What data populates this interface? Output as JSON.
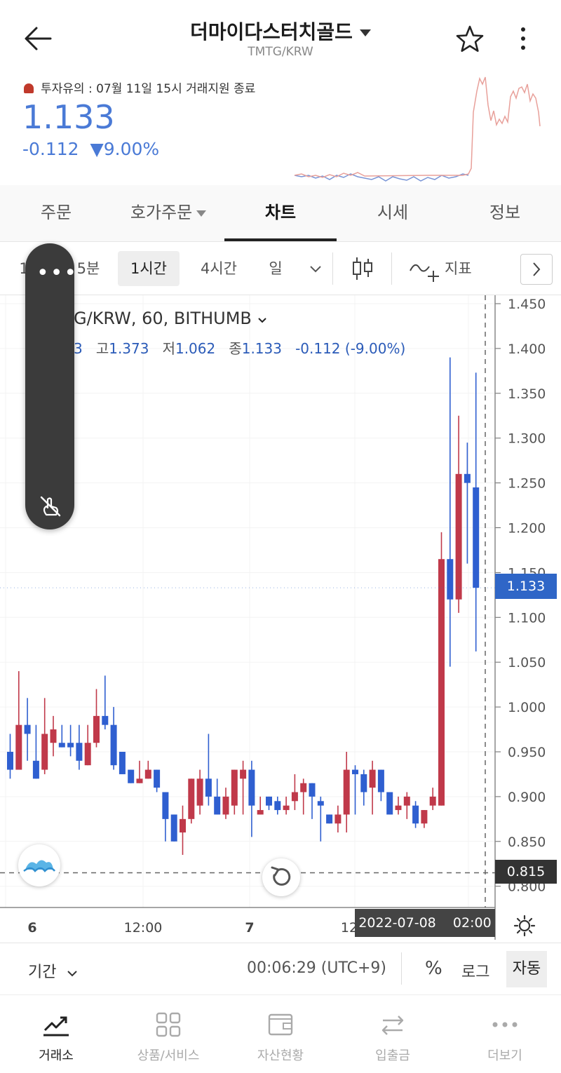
{
  "header": {
    "title": "더마이다스터치골드",
    "subtitle": "TMTG/KRW"
  },
  "summary": {
    "notice": "투자유의 : 07월 11일 15시 거래지원 종료",
    "price": "1.133",
    "change": "-0.112",
    "change_pct": "▼9.00%"
  },
  "tabs": [
    {
      "label": "주문"
    },
    {
      "label": "호가주문"
    },
    {
      "label": "차트"
    },
    {
      "label": "시세"
    },
    {
      "label": "정보"
    }
  ],
  "toolbar": {
    "intervals": [
      "1",
      "5분",
      "1시간",
      "4시간",
      "일"
    ],
    "indicator_label": "지표"
  },
  "legend": {
    "symbol": "G/KRW, 60, BITHUMB",
    "open_partial": "3",
    "high_label": "고",
    "high": "1.373",
    "low_label": "저",
    "low": "1.062",
    "close_label": "종",
    "close": "1.133",
    "change": "-0.112 (-9.00%)"
  },
  "tags": {
    "current_price": "1.133",
    "reference_price": "0.815",
    "crosshair_time": "2022-07-08    02:00"
  },
  "controls": {
    "period_label": "기간",
    "clock": "00:06:29 (UTC+9)",
    "percent": "%",
    "log": "로그",
    "auto": "자동"
  },
  "nav": [
    {
      "label": "거래소",
      "icon": "trend-icon"
    },
    {
      "label": "상품/서비스",
      "icon": "grid-icon"
    },
    {
      "label": "자산현황",
      "icon": "wallet-icon"
    },
    {
      "label": "입출금",
      "icon": "transfer-icon"
    },
    {
      "label": "더보기",
      "icon": "more-icon"
    }
  ],
  "colors": {
    "up": "#c0394a",
    "down": "#2f5fd0",
    "accent": "#4a7ad6"
  },
  "chart_data": {
    "type": "candlestick",
    "symbol": "TMTG/KRW",
    "interval": "60",
    "exchange": "BITHUMB",
    "y_ticks": [
      "1.450",
      "1.400",
      "1.350",
      "1.300",
      "1.250",
      "1.200",
      "1.150",
      "1.100",
      "1.050",
      "1.000",
      "0.950",
      "0.900",
      "0.850",
      "0.800"
    ],
    "x_ticks": [
      "6",
      "12:00",
      "7",
      "12"
    ],
    "ylim": [
      0.777,
      1.47
    ],
    "candles": [
      [
        0.95,
        0.93,
        0.97,
        0.92
      ],
      [
        0.93,
        0.98,
        1.04,
        0.93
      ],
      [
        0.98,
        0.97,
        1.01,
        0.94
      ],
      [
        0.94,
        0.92,
        0.98,
        0.92
      ],
      [
        0.93,
        0.97,
        1.01,
        0.925
      ],
      [
        0.96,
        0.975,
        0.99,
        0.945
      ],
      [
        0.96,
        0.955,
        0.98,
        0.955
      ],
      [
        0.96,
        0.955,
        0.98,
        0.945
      ],
      [
        0.96,
        0.94,
        0.98,
        0.93
      ],
      [
        0.935,
        0.96,
        0.98,
        0.935
      ],
      [
        0.96,
        0.99,
        1.02,
        0.955
      ],
      [
        0.99,
        0.98,
        1.035,
        0.975
      ],
      [
        0.98,
        0.935,
        1.0,
        0.93
      ],
      [
        0.95,
        0.925,
        0.95,
        0.925
      ],
      [
        0.93,
        0.915,
        0.93,
        0.915
      ],
      [
        0.915,
        0.92,
        0.94,
        0.915
      ],
      [
        0.92,
        0.93,
        0.94,
        0.92
      ],
      [
        0.93,
        0.91,
        0.93,
        0.905
      ],
      [
        0.905,
        0.875,
        0.905,
        0.85
      ],
      [
        0.88,
        0.85,
        0.88,
        0.85
      ],
      [
        0.86,
        0.875,
        0.89,
        0.835
      ],
      [
        0.875,
        0.92,
        0.92,
        0.87
      ],
      [
        0.89,
        0.92,
        0.93,
        0.88
      ],
      [
        0.92,
        0.9,
        0.97,
        0.89
      ],
      [
        0.9,
        0.88,
        0.92,
        0.88
      ],
      [
        0.88,
        0.9,
        0.91,
        0.875
      ],
      [
        0.89,
        0.93,
        0.93,
        0.88
      ],
      [
        0.92,
        0.93,
        0.94,
        0.88
      ],
      [
        0.93,
        0.89,
        0.94,
        0.855
      ],
      [
        0.88,
        0.885,
        0.9,
        0.88
      ],
      [
        0.9,
        0.89,
        0.9,
        0.885
      ],
      [
        0.895,
        0.885,
        0.9,
        0.88
      ],
      [
        0.885,
        0.89,
        0.9,
        0.88
      ],
      [
        0.895,
        0.905,
        0.925,
        0.885
      ],
      [
        0.905,
        0.915,
        0.92,
        0.88
      ],
      [
        0.915,
        0.9,
        0.915,
        0.875
      ],
      [
        0.895,
        0.89,
        0.9,
        0.85
      ],
      [
        0.88,
        0.87,
        0.88,
        0.87
      ],
      [
        0.87,
        0.88,
        0.89,
        0.86
      ],
      [
        0.88,
        0.93,
        0.95,
        0.86
      ],
      [
        0.93,
        0.925,
        0.935,
        0.88
      ],
      [
        0.925,
        0.905,
        0.93,
        0.89
      ],
      [
        0.91,
        0.93,
        0.94,
        0.88
      ],
      [
        0.93,
        0.905,
        0.93,
        0.895
      ],
      [
        0.905,
        0.88,
        0.905,
        0.88
      ],
      [
        0.885,
        0.89,
        0.9,
        0.88
      ],
      [
        0.89,
        0.9,
        0.905,
        0.875
      ],
      [
        0.89,
        0.87,
        0.895,
        0.865
      ],
      [
        0.87,
        0.885,
        0.885,
        0.865
      ],
      [
        0.89,
        0.9,
        0.91,
        0.885
      ],
      [
        0.89,
        1.165,
        1.195,
        0.89
      ],
      [
        1.165,
        1.12,
        1.39,
        1.045
      ],
      [
        1.12,
        1.26,
        1.325,
        1.105
      ],
      [
        1.26,
        1.25,
        1.295,
        1.16
      ],
      [
        1.245,
        1.133,
        1.373,
        1.062
      ]
    ],
    "reference_line": 0.815
  }
}
